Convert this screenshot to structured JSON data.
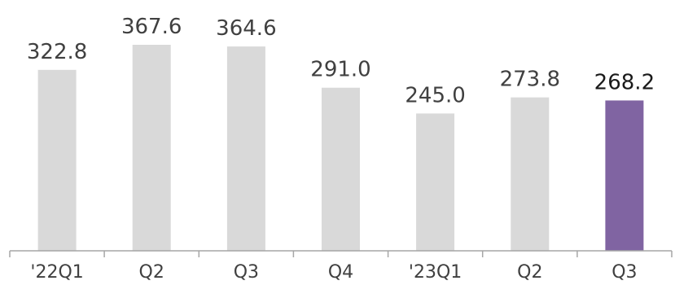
{
  "chart_data": {
    "type": "bar",
    "categories": [
      "'22Q1",
      "Q2",
      "Q3",
      "Q4",
      "'23Q1",
      "Q2",
      "Q3"
    ],
    "values": [
      322.8,
      367.6,
      364.6,
      291.0,
      245.0,
      273.8,
      268.2
    ],
    "value_labels": [
      "322.8",
      "367.6",
      "364.6",
      "291.0",
      "245.0",
      "273.8",
      "268.2"
    ],
    "highlight_index": 6,
    "title": "",
    "xlabel": "",
    "ylabel": "",
    "ylim": [
      0,
      367.6
    ],
    "grid": false,
    "legend": "none",
    "colors": {
      "bar": "#d9d9d9",
      "highlight": "#8064a2",
      "axis": "#a6a6a6",
      "text": "#404040"
    }
  }
}
